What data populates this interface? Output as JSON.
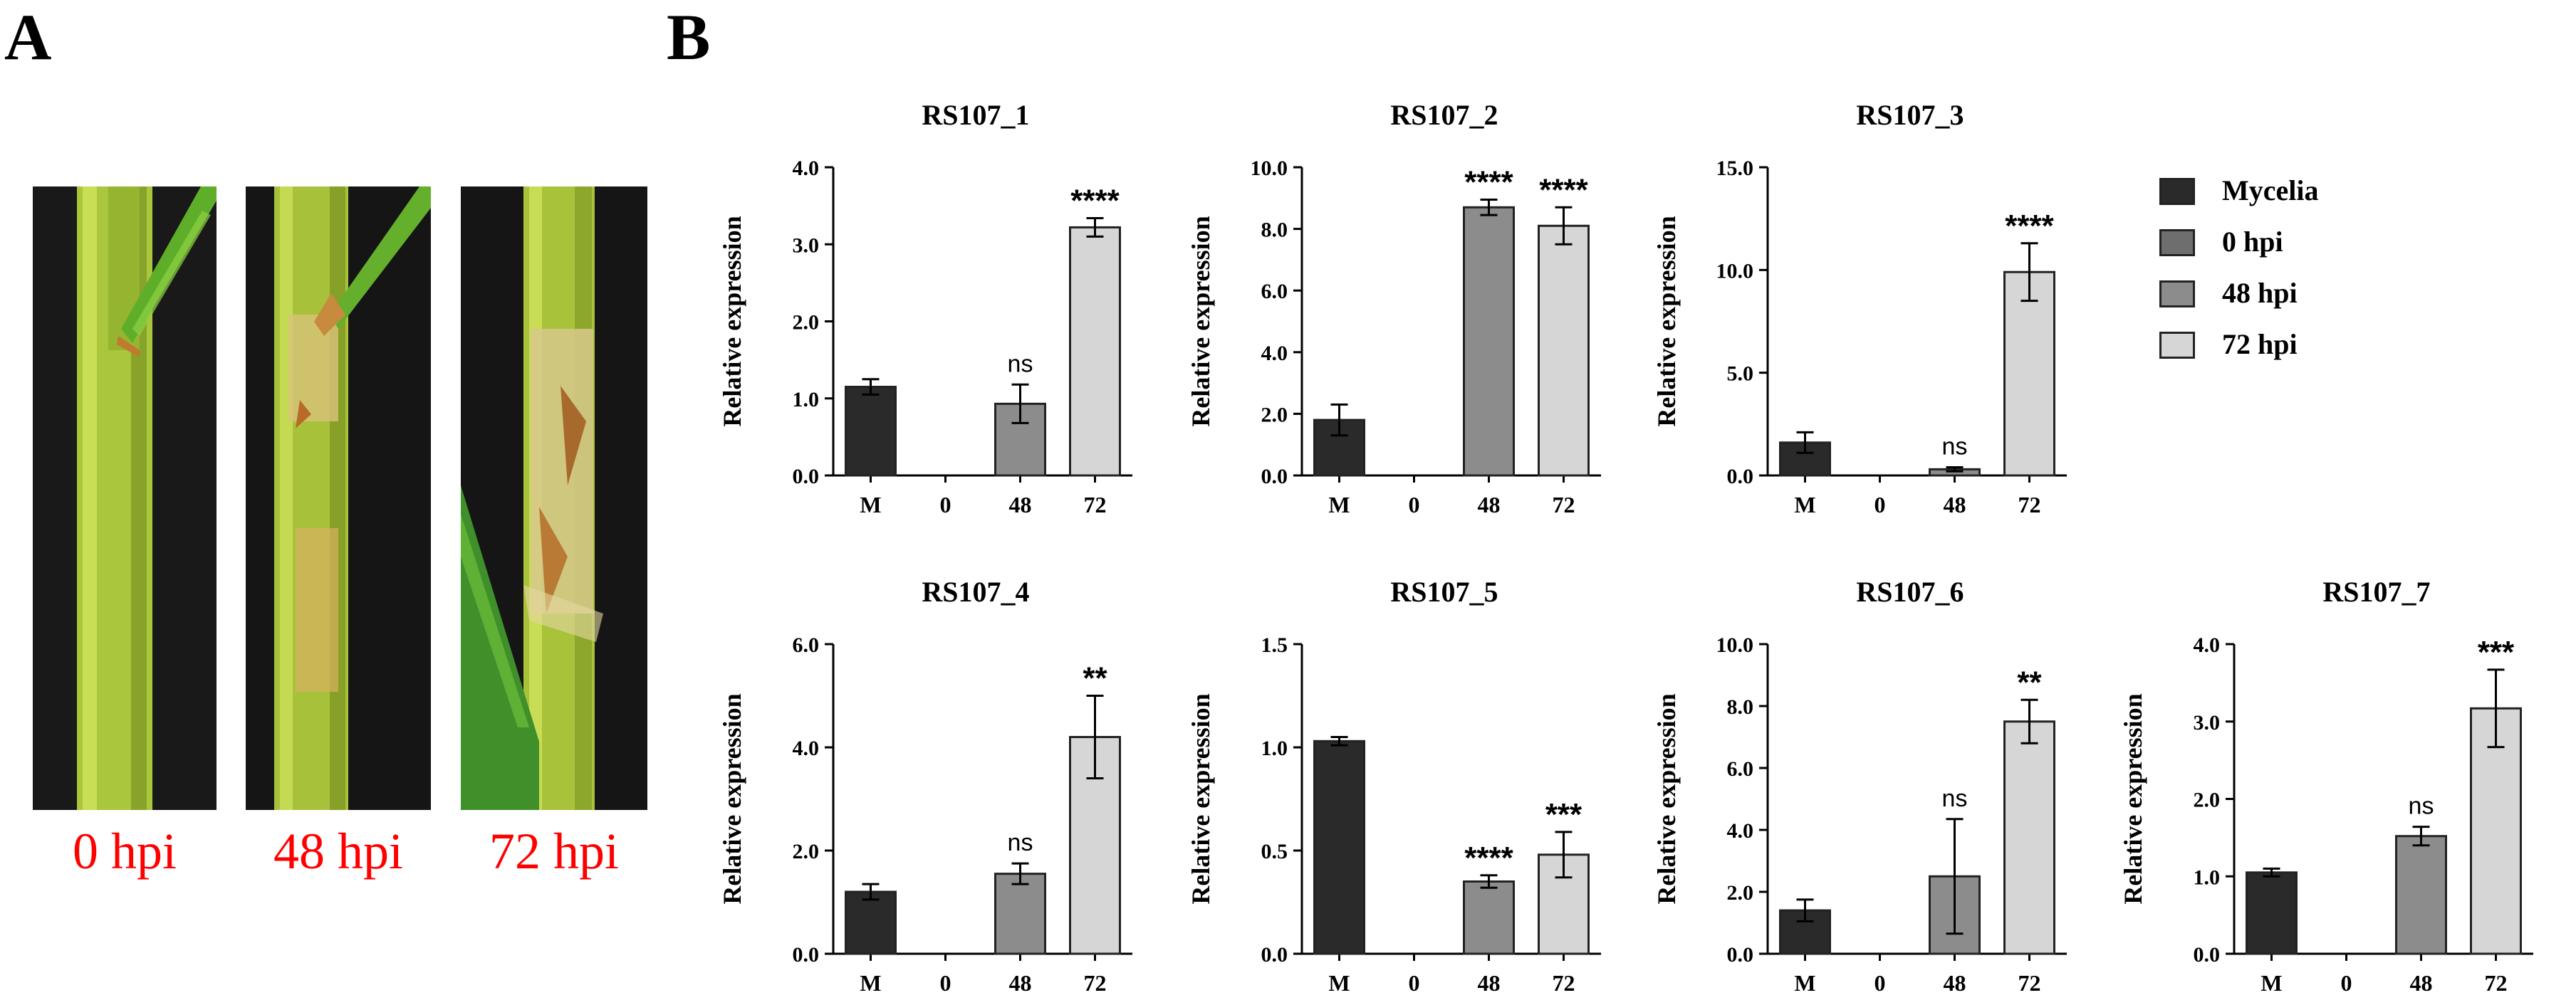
{
  "panels": {
    "a": "A",
    "b": "B"
  },
  "photos": [
    {
      "label": "0 hpi"
    },
    {
      "label": "48 hpi"
    },
    {
      "label": "72 hpi"
    }
  ],
  "legend": [
    {
      "label": "Mycelia",
      "color": "#2a2a2a"
    },
    {
      "label": "0 hpi",
      "color": "#6e6e6e"
    },
    {
      "label": "48 hpi",
      "color": "#8c8c8c"
    },
    {
      "label": "72 hpi",
      "color": "#d6d6d6"
    }
  ],
  "chart_data": [
    {
      "type": "bar",
      "title": "RS107_1",
      "ylabel": "Relative expression",
      "categories": [
        "M",
        "0",
        "48",
        "72"
      ],
      "values": [
        1.15,
        0,
        0.93,
        3.22
      ],
      "errors": [
        0.1,
        0,
        0.25,
        0.12
      ],
      "sig": [
        "",
        "",
        "ns",
        "****"
      ],
      "ylim": [
        0,
        4
      ],
      "ticks": [
        "0.0",
        "1.0",
        "2.0",
        "3.0",
        "4.0"
      ]
    },
    {
      "type": "bar",
      "title": "RS107_2",
      "ylabel": "Relative expression",
      "categories": [
        "M",
        "0",
        "48",
        "72"
      ],
      "values": [
        1.8,
        0,
        8.7,
        8.1
      ],
      "errors": [
        0.5,
        0,
        0.25,
        0.6
      ],
      "sig": [
        "",
        "",
        "****",
        "****"
      ],
      "ylim": [
        0,
        10
      ],
      "ticks": [
        "0.0",
        "2.0",
        "4.0",
        "6.0",
        "8.0",
        "10.0"
      ]
    },
    {
      "type": "bar",
      "title": "RS107_3",
      "ylabel": "Relative expression",
      "categories": [
        "M",
        "0",
        "48",
        "72"
      ],
      "values": [
        1.6,
        0,
        0.3,
        9.9
      ],
      "errors": [
        0.5,
        0,
        0.1,
        1.4
      ],
      "sig": [
        "",
        "",
        "ns",
        "****"
      ],
      "ylim": [
        0,
        15
      ],
      "ticks": [
        "0.0",
        "5.0",
        "10.0",
        "15.0"
      ]
    },
    {
      "type": "bar",
      "title": "RS107_4",
      "ylabel": "Relative expression",
      "categories": [
        "M",
        "0",
        "48",
        "72"
      ],
      "values": [
        1.2,
        0,
        1.55,
        4.2
      ],
      "errors": [
        0.15,
        0,
        0.2,
        0.8
      ],
      "sig": [
        "",
        "",
        "ns",
        "**"
      ],
      "ylim": [
        0,
        6
      ],
      "ticks": [
        "0.0",
        "2.0",
        "4.0",
        "6.0"
      ]
    },
    {
      "type": "bar",
      "title": "RS107_5",
      "ylabel": "Relative expression",
      "categories": [
        "M",
        "0",
        "48",
        "72"
      ],
      "values": [
        1.03,
        0,
        0.35,
        0.48
      ],
      "errors": [
        0.02,
        0,
        0.03,
        0.11
      ],
      "sig": [
        "",
        "",
        "****",
        "***"
      ],
      "ylim": [
        0,
        1.5
      ],
      "ticks": [
        "0.0",
        "0.5",
        "1.0",
        "1.5"
      ]
    },
    {
      "type": "bar",
      "title": "RS107_6",
      "ylabel": "Relative expression",
      "categories": [
        "M",
        "0",
        "48",
        "72"
      ],
      "values": [
        1.4,
        0,
        2.5,
        7.5
      ],
      "errors": [
        0.35,
        0,
        1.85,
        0.7
      ],
      "sig": [
        "",
        "",
        "ns",
        "**"
      ],
      "ylim": [
        0,
        10
      ],
      "ticks": [
        "0.0",
        "2.0",
        "4.0",
        "6.0",
        "8.0",
        "10.0"
      ]
    },
    {
      "type": "bar",
      "title": "RS107_7",
      "ylabel": "Relative expression",
      "categories": [
        "M",
        "0",
        "48",
        "72"
      ],
      "values": [
        1.05,
        0,
        1.52,
        3.17
      ],
      "errors": [
        0.05,
        0,
        0.12,
        0.5
      ],
      "sig": [
        "",
        "",
        "ns",
        "***"
      ],
      "ylim": [
        0,
        4
      ],
      "ticks": [
        "0.0",
        "1.0",
        "2.0",
        "3.0",
        "4.0"
      ]
    }
  ]
}
